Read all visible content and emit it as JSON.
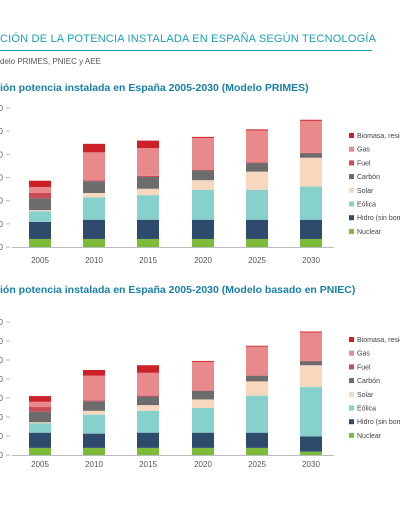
{
  "header": {
    "title": "CIÓN DE LA POTENCIA INSTALADA EN ESPAÑA SEGÚN TECNOLOGÍA",
    "source": "delo PRIMES, PNIEC y AEE"
  },
  "colors": {
    "Nuclear": "#7dbb3a",
    "Hidro (sin bombeo)": "#2e4b6e",
    "Eólica": "#86d1cb",
    "Solar": "#f7d8bf",
    "Carbón": "#6c6c6c",
    "Fuel": "#c84b57",
    "Gas": "#e88a8c",
    "Biomasa, residuos": "#cc2129",
    "axis": "#bbbbbb",
    "header": "#1aa0b8",
    "title": "#1a7fa6"
  },
  "chart_data": [
    {
      "type": "bar",
      "stacked": true,
      "title": "ión potencia instalada en España 2005-2030 (Modelo PRIMES)",
      "categories": [
        "2005",
        "2010",
        "2015",
        "2020",
        "2025",
        "2030"
      ],
      "y_tick_labels": [
        "0",
        "0",
        "0",
        "0",
        "0",
        "0",
        "0"
      ],
      "legend_labels": [
        "Biomasa, resid",
        "Gas",
        "Fuel",
        "Carbón",
        "Solar",
        "Eólica",
        "Hidro (sin bom",
        "Nuclear"
      ],
      "legend_position": "right",
      "series": [
        {
          "name": "Nuclear",
          "values": [
            7.5,
            7.5,
            7.5,
            7.5,
            7.5,
            7.5
          ]
        },
        {
          "name": "Hidro (sin bombeo)",
          "values": [
            16.0,
            18.0,
            18.0,
            18.0,
            18.0,
            18.0
          ]
        },
        {
          "name": "Eólica",
          "values": [
            10.0,
            21.0,
            23.0,
            28.0,
            28.0,
            31.0
          ]
        },
        {
          "name": "Solar",
          "values": [
            1.0,
            4.0,
            6.0,
            9.0,
            17.0,
            27.0
          ]
        },
        {
          "name": "Carbón",
          "values": [
            11.0,
            11.0,
            11.0,
            9.0,
            8.0,
            4.0
          ]
        },
        {
          "name": "Fuel",
          "values": [
            5.0,
            1.0,
            1.0,
            0.5,
            0.5,
            0.5
          ]
        },
        {
          "name": "Gas",
          "values": [
            5.5,
            26.0,
            26.0,
            30.0,
            30.0,
            30.0
          ]
        },
        {
          "name": "Biomasa, residuos",
          "values": [
            6.0,
            8.0,
            7.0,
            1.0,
            1.0,
            1.0
          ]
        }
      ],
      "ylim": [
        0,
        130
      ]
    },
    {
      "type": "bar",
      "stacked": true,
      "title": "ión potencia instalada en España 2005-2030 (Modelo basado en PNIEC)",
      "categories": [
        "2005",
        "2010",
        "2015",
        "2020",
        "2025",
        "2030"
      ],
      "y_tick_labels": [
        "0",
        "0",
        "0",
        "0",
        "0",
        "0",
        "0",
        "0"
      ],
      "legend_labels": [
        "Biomasa, resic",
        "Gas",
        "Fuel",
        "Carbón",
        "Solar",
        "Eólica",
        "Hidro (sin bom",
        "Nuclear"
      ],
      "legend_position": "right",
      "series": [
        {
          "name": "Nuclear",
          "values": [
            7.5,
            7.5,
            7.5,
            7.5,
            7.5,
            3.5
          ]
        },
        {
          "name": "Hidro (sin bombeo)",
          "values": [
            16.0,
            15.0,
            16.0,
            16.0,
            16.0,
            16.0
          ]
        },
        {
          "name": "Eólica",
          "values": [
            10.0,
            20.0,
            23.0,
            26.0,
            39.0,
            52.0
          ]
        },
        {
          "name": "Solar",
          "values": [
            1.0,
            4.0,
            6.0,
            9.0,
            15.0,
            23.0
          ]
        },
        {
          "name": "Carbón",
          "values": [
            11.0,
            10.0,
            9.0,
            9.0,
            6.0,
            4.0
          ]
        },
        {
          "name": "Fuel",
          "values": [
            5.0,
            1.0,
            1.0,
            0.5,
            0.5,
            0.5
          ]
        },
        {
          "name": "Gas",
          "values": [
            5.5,
            26.0,
            24.0,
            30.0,
            30.0,
            30.0
          ]
        },
        {
          "name": "Biomasa, residuos",
          "values": [
            6.0,
            6.0,
            8.0,
            1.0,
            1.0,
            1.0
          ]
        }
      ],
      "ylim": [
        0,
        140
      ]
    }
  ]
}
